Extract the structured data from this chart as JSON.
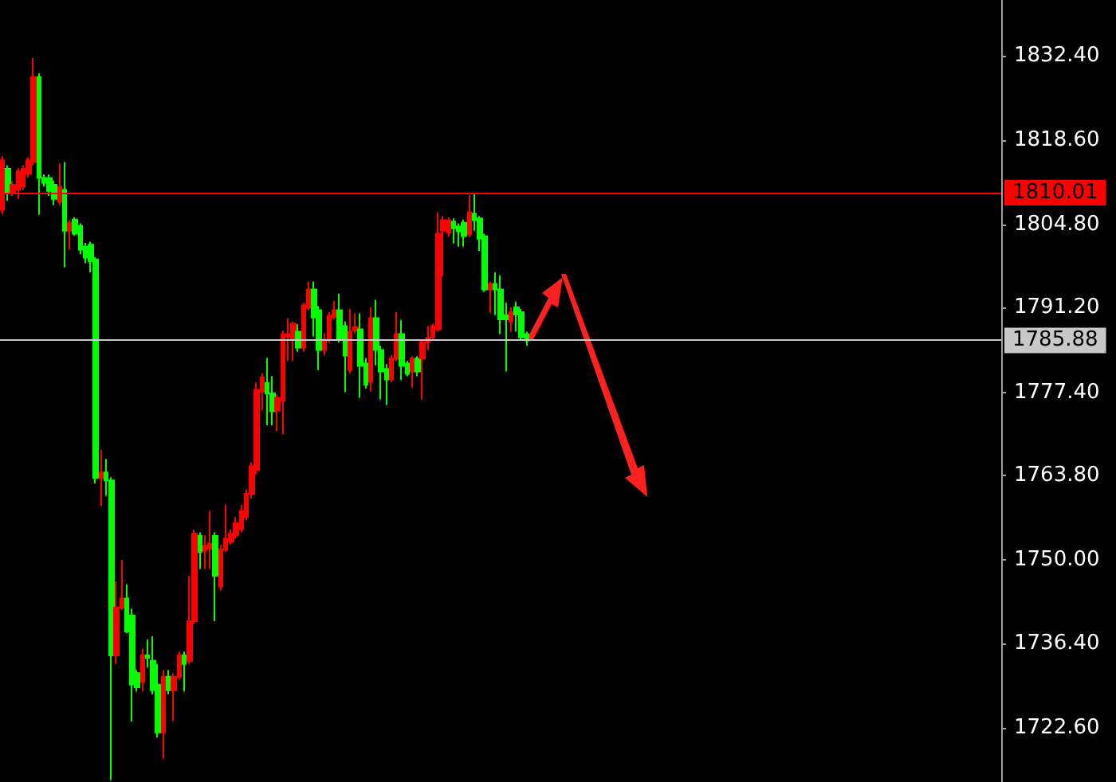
{
  "chart_data": {
    "type": "candlestick",
    "categories": [
      null,
      null,
      null,
      null,
      null,
      null,
      null,
      null,
      null,
      null,
      null,
      null,
      null,
      null,
      null,
      null,
      null,
      null,
      null,
      null,
      null,
      null,
      null,
      null,
      null,
      null,
      null,
      null,
      null,
      null,
      null,
      null,
      null,
      null,
      null,
      null,
      null,
      null,
      null,
      null,
      null,
      null,
      null,
      null,
      null,
      null,
      null,
      null,
      null,
      null,
      null,
      null,
      null,
      null,
      null,
      null,
      null,
      null,
      null,
      null,
      null,
      null,
      null,
      null,
      null,
      null,
      null,
      null,
      null,
      null,
      null,
      null,
      null,
      null,
      null,
      null,
      null,
      null,
      null,
      null,
      null,
      null,
      null,
      null,
      null,
      null,
      null,
      null,
      null,
      null,
      null,
      null,
      null,
      null,
      null,
      null,
      null,
      null,
      null,
      null,
      null,
      null,
      null,
      null,
      null,
      null,
      null,
      null,
      null,
      null,
      null,
      null,
      null,
      null,
      null,
      null,
      null,
      null,
      null,
      null,
      null,
      null,
      null,
      null,
      null,
      null,
      null,
      null,
      null,
      null,
      null,
      null,
      null,
      null,
      null,
      null,
      null,
      null,
      null,
      null,
      null,
      null,
      null,
      null,
      null,
      null,
      null,
      null,
      null,
      null,
      null,
      null,
      null,
      null,
      null,
      null,
      null,
      null,
      null,
      null,
      null,
      null,
      null,
      null,
      null,
      null,
      null,
      null,
      null,
      null,
      null,
      null,
      null,
      null,
      null,
      null,
      null,
      null,
      null,
      null,
      null,
      null,
      null,
      null,
      null,
      null,
      null,
      null,
      null,
      null,
      null,
      null,
      null
    ],
    "ohlc": [
      [
        1807.2,
        1816,
        1806.5,
        1815.3
      ],
      [
        1813.9,
        1814.5,
        1808.7,
        1810.1
      ],
      [
        1810.1,
        1812,
        1809.5,
        1811.3
      ],
      [
        1810.5,
        1814,
        1809,
        1813.5
      ],
      [
        1811,
        1814.5,
        1810.5,
        1813.9
      ],
      [
        1813.1,
        1815.8,
        1812.5,
        1815.3
      ],
      [
        1815,
        1832,
        1814.5,
        1828.9
      ],
      [
        1828.9,
        1829.5,
        1806.4,
        1812.4
      ],
      [
        1812.4,
        1813,
        1811,
        1811.6
      ],
      [
        1812.4,
        1813,
        1809.5,
        1810.3
      ],
      [
        1811.3,
        1812,
        1808,
        1809
      ],
      [
        1808.5,
        1814.8,
        1808,
        1811
      ],
      [
        1810.5,
        1815,
        1797.8,
        1803.8
      ],
      [
        1803.8,
        1805.5,
        1800.7,
        1805.1
      ],
      [
        1805.6,
        1806,
        1803,
        1803.3
      ],
      [
        1804.6,
        1805,
        1800,
        1800.7
      ],
      [
        1801.2,
        1801.8,
        1798.5,
        1799.4
      ],
      [
        1801.5,
        1802,
        1797,
        1798.8
      ],
      [
        1799.1,
        1799.5,
        1762.5,
        1763.4
      ],
      [
        1763.4,
        1768,
        1758.8,
        1764.3
      ],
      [
        1764.3,
        1766.5,
        1760.5,
        1763
      ],
      [
        1763,
        1763.5,
        1714,
        1734.4
      ],
      [
        1734.4,
        1746.5,
        1733,
        1742.2
      ],
      [
        1742.2,
        1750,
        1741.8,
        1743.7
      ],
      [
        1743.7,
        1746,
        1738,
        1738.3
      ],
      [
        1740.9,
        1742,
        1723.6,
        1729.6
      ],
      [
        1731.5,
        1732,
        1728.5,
        1729.2
      ],
      [
        1730.1,
        1735.5,
        1728.5,
        1734.4
      ],
      [
        1734.4,
        1737,
        1732.4,
        1734
      ],
      [
        1733.5,
        1737.5,
        1728,
        1728.7
      ],
      [
        1729.6,
        1733,
        1721,
        1721.8
      ],
      [
        1721.8,
        1732,
        1717.5,
        1730.9
      ],
      [
        1730.9,
        1732,
        1728,
        1728.7
      ],
      [
        1728.7,
        1731.5,
        1723.7,
        1730.9
      ],
      [
        1730.9,
        1735,
        1730.5,
        1734.4
      ],
      [
        1734.4,
        1735,
        1728.5,
        1733
      ],
      [
        1733.5,
        1747.4,
        1733,
        1740
      ],
      [
        1740,
        1755,
        1739.5,
        1754.3
      ],
      [
        1753.9,
        1754.5,
        1748.5,
        1751.3
      ],
      [
        1751.5,
        1754,
        1748.5,
        1752.3
      ],
      [
        1751.8,
        1758,
        1748.5,
        1752.6
      ],
      [
        1753.9,
        1754.5,
        1740,
        1747.4
      ],
      [
        1745.7,
        1752.5,
        1745,
        1751.7
      ],
      [
        1751.7,
        1759,
        1751.3,
        1753.5
      ],
      [
        1753,
        1755,
        1752.5,
        1754.3
      ],
      [
        1754,
        1757,
        1753.5,
        1756
      ],
      [
        1755,
        1759,
        1754.5,
        1758
      ],
      [
        1757,
        1761.5,
        1756.5,
        1760.8
      ],
      [
        1760.8,
        1766,
        1760,
        1765.3
      ],
      [
        1764.7,
        1779,
        1764,
        1777.8
      ],
      [
        1777.5,
        1780.5,
        1774.5,
        1779.8
      ],
      [
        1778.9,
        1783,
        1772,
        1777.2
      ],
      [
        1777.2,
        1780,
        1772,
        1774.3
      ],
      [
        1774.4,
        1777,
        1771,
        1776.5
      ],
      [
        1776,
        1787.5,
        1770.5,
        1786.9
      ],
      [
        1786.5,
        1789.5,
        1782.5,
        1786.9
      ],
      [
        1786,
        1789,
        1782.5,
        1788.6
      ],
      [
        1787.3,
        1788.5,
        1784,
        1784.7
      ],
      [
        1784.7,
        1792,
        1784,
        1791.6
      ],
      [
        1791.2,
        1795.5,
        1790.8,
        1794.2
      ],
      [
        1794.2,
        1795.5,
        1786.5,
        1789.6
      ],
      [
        1790.8,
        1791.5,
        1781,
        1784.3
      ],
      [
        1784.3,
        1787,
        1783.5,
        1786
      ],
      [
        1786,
        1790.5,
        1785.5,
        1789.9
      ],
      [
        1789.7,
        1792.3,
        1789.3,
        1790.8
      ],
      [
        1790.8,
        1793.5,
        1785.5,
        1786.2
      ],
      [
        1788.2,
        1789,
        1777.4,
        1783.4
      ],
      [
        1781,
        1791,
        1780.5,
        1787.3
      ],
      [
        1787.5,
        1790.3,
        1787,
        1788
      ],
      [
        1787.7,
        1790.3,
        1776.5,
        1781.7
      ],
      [
        1782.1,
        1783,
        1778,
        1778.6
      ],
      [
        1779.1,
        1791.3,
        1777.5,
        1789.5
      ],
      [
        1789.5,
        1792.5,
        1781.8,
        1784.3
      ],
      [
        1784.3,
        1785,
        1776.2,
        1780.8
      ],
      [
        1781.2,
        1782,
        1775.3,
        1779.5
      ],
      [
        1779.5,
        1783.5,
        1779,
        1782.9
      ],
      [
        1782.9,
        1790.5,
        1782.5,
        1786.9
      ],
      [
        1786.9,
        1789.2,
        1779.4,
        1781.7
      ],
      [
        1782.1,
        1782.5,
        1780,
        1780.4
      ],
      [
        1780.8,
        1783.3,
        1778.2,
        1782.9
      ],
      [
        1782.9,
        1783.3,
        1780,
        1780.8
      ],
      [
        1782.9,
        1786,
        1776.2,
        1785.6
      ],
      [
        1785.6,
        1788.2,
        1784.3,
        1786.3
      ],
      [
        1786.4,
        1788.6,
        1786,
        1788.2
      ],
      [
        1787.7,
        1806.8,
        1787.3,
        1803.3
      ],
      [
        1803.8,
        1806.2,
        1796.3,
        1805.5
      ],
      [
        1803.5,
        1806,
        1802.8,
        1805.5
      ],
      [
        1805.3,
        1805.8,
        1801.7,
        1804.2
      ],
      [
        1804.5,
        1805,
        1801.2,
        1803.7
      ],
      [
        1805.1,
        1805.6,
        1801.2,
        1802.9
      ],
      [
        1803.2,
        1809.6,
        1802.8,
        1806.8
      ],
      [
        1806.6,
        1809.8,
        1803.8,
        1805.5
      ],
      [
        1805.8,
        1806.2,
        1800.5,
        1802.5
      ],
      [
        1802.9,
        1803.3,
        1793.8,
        1794.2
      ],
      [
        1794.2,
        1795.5,
        1790.4,
        1795.1
      ],
      [
        1795.1,
        1797,
        1790,
        1794.2
      ],
      [
        1794.2,
        1796.5,
        1786.9,
        1789.3
      ],
      [
        1790,
        1792,
        1780.8,
        1789.3
      ],
      [
        1789,
        1791.3,
        1787.3,
        1790.5
      ],
      [
        1791.3,
        1792.2,
        1787.3,
        1790.1
      ],
      [
        1790.5,
        1791,
        1785.9,
        1786.4
      ],
      [
        1786.9,
        1787.3,
        1785,
        1785.88
      ],
      null,
      null,
      null,
      null,
      null,
      null,
      null,
      null,
      null,
      null,
      null,
      null,
      null,
      null,
      null,
      null,
      null,
      null,
      null,
      null,
      null,
      null,
      null,
      null,
      null,
      null,
      null,
      null,
      null,
      null,
      null,
      null,
      null,
      null,
      null,
      null,
      null,
      null,
      null,
      null,
      null,
      null,
      null,
      null,
      null,
      null,
      null,
      null,
      null,
      null,
      null,
      null,
      null,
      null,
      null,
      null,
      null,
      null,
      null,
      null,
      null,
      null,
      null,
      null,
      null,
      null,
      null,
      null,
      null,
      null,
      null,
      null,
      null,
      null,
      null,
      null,
      null,
      null,
      null,
      null,
      null,
      null,
      null,
      null,
      null,
      null,
      null,
      null,
      null,
      null,
      null
    ],
    "colors": [
      "#ff0000",
      "#00ff00",
      "#ff0000",
      "#ff0000",
      "#ff0000",
      "#ff0000",
      "#ff0000",
      "#00ff00",
      "#00ff00",
      "#00ff00",
      "#00ff00",
      "#ff0000",
      "#00ff00",
      "#ff0000",
      "#00ff00",
      "#00ff00",
      "#00ff00",
      "#00ff00",
      "#00ff00",
      "#ff0000",
      "#00ff00",
      "#00ff00",
      "#ff0000",
      "#ff0000",
      "#00ff00",
      "#00ff00",
      "#00ff00",
      "#ff0000",
      "#00ff00",
      "#00ff00",
      "#00ff00",
      "#ff0000",
      "#00ff00",
      "#ff0000",
      "#ff0000",
      "#00ff00",
      "#ff0000",
      "#ff0000",
      "#00ff00",
      "#ff0000",
      "#ff0000",
      "#00ff00",
      "#ff0000",
      "#ff0000",
      "#ff0000",
      "#ff0000",
      "#ff0000",
      "#ff0000",
      "#ff0000",
      "#ff0000",
      "#ff0000",
      "#00ff00",
      "#00ff00",
      "#ff0000",
      "#ff0000",
      "#ff0000",
      "#ff0000",
      "#00ff00",
      "#ff0000",
      "#ff0000",
      "#00ff00",
      "#00ff00",
      "#ff0000",
      "#ff0000",
      "#ff0000",
      "#00ff00",
      "#00ff00",
      "#ff0000",
      "#ff0000",
      "#00ff00",
      "#00ff00",
      "#ff0000",
      "#00ff00",
      "#00ff00",
      "#00ff00",
      "#ff0000",
      "#ff0000",
      "#00ff00",
      "#00ff00",
      "#ff0000",
      "#00ff00",
      "#ff0000",
      "#ff0000",
      "#ff0000",
      "#ff0000",
      "#ff0000",
      "#ff0000",
      "#00ff00",
      "#00ff00",
      "#00ff00",
      "#ff0000",
      "#00ff00",
      "#00ff00",
      "#00ff00",
      "#ff0000",
      "#00ff00",
      "#00ff00",
      "#00ff00",
      "#ff0000",
      "#00ff00",
      "#00ff00",
      "#00ff00",
      null,
      null,
      null,
      null,
      null,
      null,
      null,
      null,
      null,
      null,
      null,
      null,
      null,
      null,
      null,
      null,
      null,
      null,
      null,
      null,
      null,
      null,
      null,
      null,
      null,
      null,
      null,
      null,
      null,
      null,
      null,
      null,
      null,
      null,
      null,
      null,
      null,
      null,
      null,
      null,
      null,
      null,
      null,
      null,
      null,
      null,
      null,
      null,
      null,
      null,
      null,
      null,
      null,
      null,
      null,
      null,
      null,
      null,
      null,
      null,
      null,
      null,
      null,
      null,
      null,
      null,
      null,
      null,
      null,
      null,
      null,
      null,
      null,
      null,
      null,
      null,
      null,
      null,
      null,
      null,
      null,
      null,
      null,
      null,
      null,
      null,
      null,
      null,
      null,
      null,
      null
    ],
    "ylim": [
      1713.7,
      1841.5
    ],
    "yticks": [
      {
        "value": 1832.4,
        "label": "1832.40"
      },
      {
        "value": 1818.6,
        "label": "1818.60"
      },
      {
        "value": 1804.8,
        "label": "1804.80"
      },
      {
        "value": 1791.2,
        "label": "1791.20"
      },
      {
        "value": 1777.4,
        "label": "1777.40"
      },
      {
        "value": 1763.8,
        "label": "1763.80"
      },
      {
        "value": 1750,
        "label": "1750.00"
      },
      {
        "value": 1736.4,
        "label": "1736.40"
      },
      {
        "value": 1722.6,
        "label": "1722.60"
      }
    ],
    "ref_lines": [
      {
        "axis": "y",
        "value": 1810.01,
        "label": "1810.01",
        "color": "#ff0000"
      },
      {
        "axis": "y",
        "value": 1785.88,
        "label": "1785.88",
        "color": "#c8c8c8"
      }
    ],
    "grid": false,
    "tick_labels": "y"
  }
}
